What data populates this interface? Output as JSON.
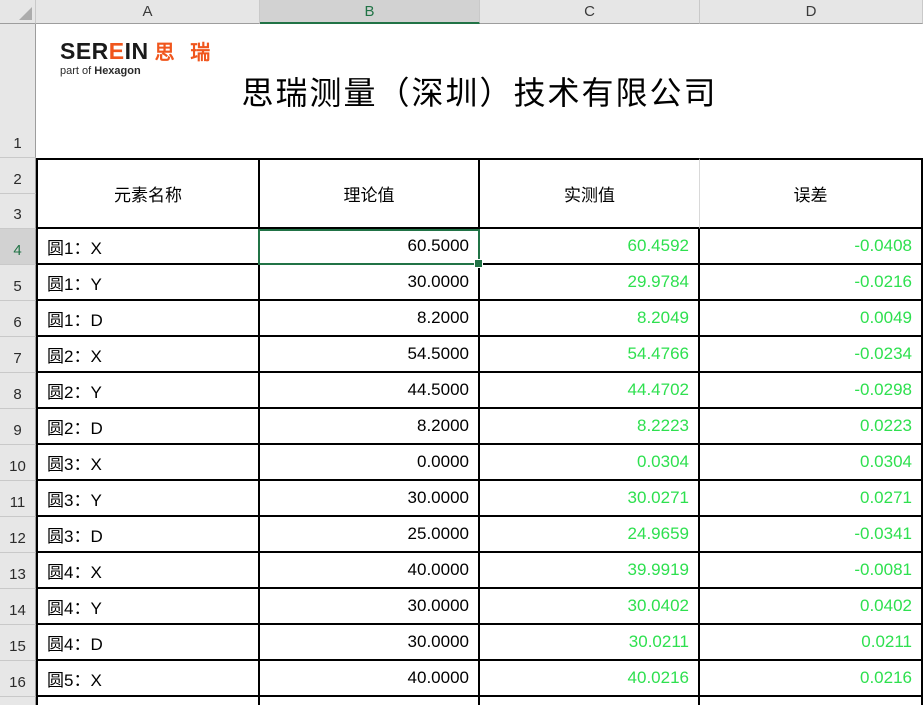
{
  "sheet": {
    "column_letters": [
      "A",
      "B",
      "C",
      "D"
    ],
    "selected_column": "B",
    "row_numbers": [
      "1",
      "2",
      "3",
      "4",
      "5",
      "6",
      "7",
      "8",
      "9",
      "10",
      "11",
      "12",
      "13",
      "14",
      "15",
      "16"
    ],
    "selected_row": "4",
    "selection": {
      "cell_ref": "B4",
      "value": "60.5000"
    }
  },
  "report": {
    "logo": {
      "ser": "SER",
      "e": "E",
      "in": "IN",
      "cn": "思 瑞",
      "sub_prefix": "part of ",
      "sub_brand": "Hexagon"
    },
    "title": "思瑞测量（深圳）技术有限公司",
    "headers": {
      "name": "元素名称",
      "theoretical": "理论值",
      "measured": "实测值",
      "deviation": "误差"
    },
    "rows": [
      {
        "name": "圆1：X",
        "theoretical": "60.5000",
        "measured": "60.4592",
        "deviation": "-0.0408"
      },
      {
        "name": "圆1：Y",
        "theoretical": "30.0000",
        "measured": "29.9784",
        "deviation": "-0.0216"
      },
      {
        "name": "圆1：D",
        "theoretical": "8.2000",
        "measured": "8.2049",
        "deviation": "0.0049"
      },
      {
        "name": "圆2：X",
        "theoretical": "54.5000",
        "measured": "54.4766",
        "deviation": "-0.0234"
      },
      {
        "name": "圆2：Y",
        "theoretical": "44.5000",
        "measured": "44.4702",
        "deviation": "-0.0298"
      },
      {
        "name": "圆2：D",
        "theoretical": "8.2000",
        "measured": "8.2223",
        "deviation": "0.0223"
      },
      {
        "name": "圆3：X",
        "theoretical": "0.0000",
        "measured": "0.0304",
        "deviation": "0.0304"
      },
      {
        "name": "圆3：Y",
        "theoretical": "30.0000",
        "measured": "30.0271",
        "deviation": "0.0271"
      },
      {
        "name": "圆3：D",
        "theoretical": "25.0000",
        "measured": "24.9659",
        "deviation": "-0.0341"
      },
      {
        "name": "圆4：X",
        "theoretical": "40.0000",
        "measured": "39.9919",
        "deviation": "-0.0081"
      },
      {
        "name": "圆4：Y",
        "theoretical": "30.0000",
        "measured": "30.0402",
        "deviation": "0.0402"
      },
      {
        "name": "圆4：D",
        "theoretical": "30.0000",
        "measured": "30.0211",
        "deviation": "0.0211"
      },
      {
        "name": "圆5：X",
        "theoretical": "40.0000",
        "measured": "40.0216",
        "deviation": "0.0216"
      }
    ]
  },
  "colors": {
    "selection_green": "#217346",
    "measured_text_green": "#2EE04F",
    "logo_orange": "#F0561D",
    "header_bg": "#E6E6E6",
    "selected_header_bg": "#D2D2D2"
  }
}
